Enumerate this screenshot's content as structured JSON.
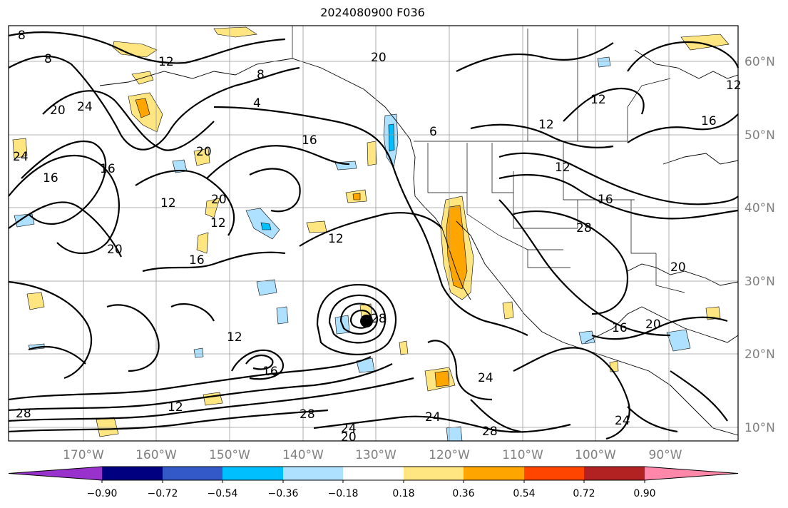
{
  "title": "2024080900 F036",
  "lon_ticks": [
    "170°W",
    "160°W",
    "150°W",
    "140°W",
    "130°W",
    "120°W",
    "110°W",
    "100°W",
    "90°W"
  ],
  "lat_ticks": [
    "60°N",
    "50°N",
    "40°N",
    "30°N",
    "20°N",
    "10°N"
  ],
  "colorbar": {
    "colors": [
      "#9932cc",
      "#000080",
      "#3358c8",
      "#00bfff",
      "#aee0ff",
      "#ffffff",
      "#ffe680",
      "#ffa500",
      "#ff4500",
      "#b22222",
      "#ff88aa"
    ],
    "tick_labels": [
      "−0.90",
      "−0.72",
      "−0.54",
      "−0.36",
      "−0.18",
      "0.18",
      "0.36",
      "0.54",
      "0.72",
      "0.90"
    ]
  },
  "contour_labels": [
    "8",
    "12",
    "8",
    "4",
    "20",
    "24",
    "20",
    "16",
    "20",
    "8",
    "6",
    "12",
    "12",
    "16",
    "16",
    "16",
    "12",
    "28",
    "20",
    "16",
    "16",
    "20",
    "12",
    "20",
    "12",
    "16",
    "12",
    "16",
    "28",
    "12",
    "28",
    "24",
    "20",
    "24",
    "28",
    "24",
    "20",
    "24",
    "28",
    "24",
    "12",
    "12"
  ],
  "storm_marker": "tropical-cyclone-center"
}
